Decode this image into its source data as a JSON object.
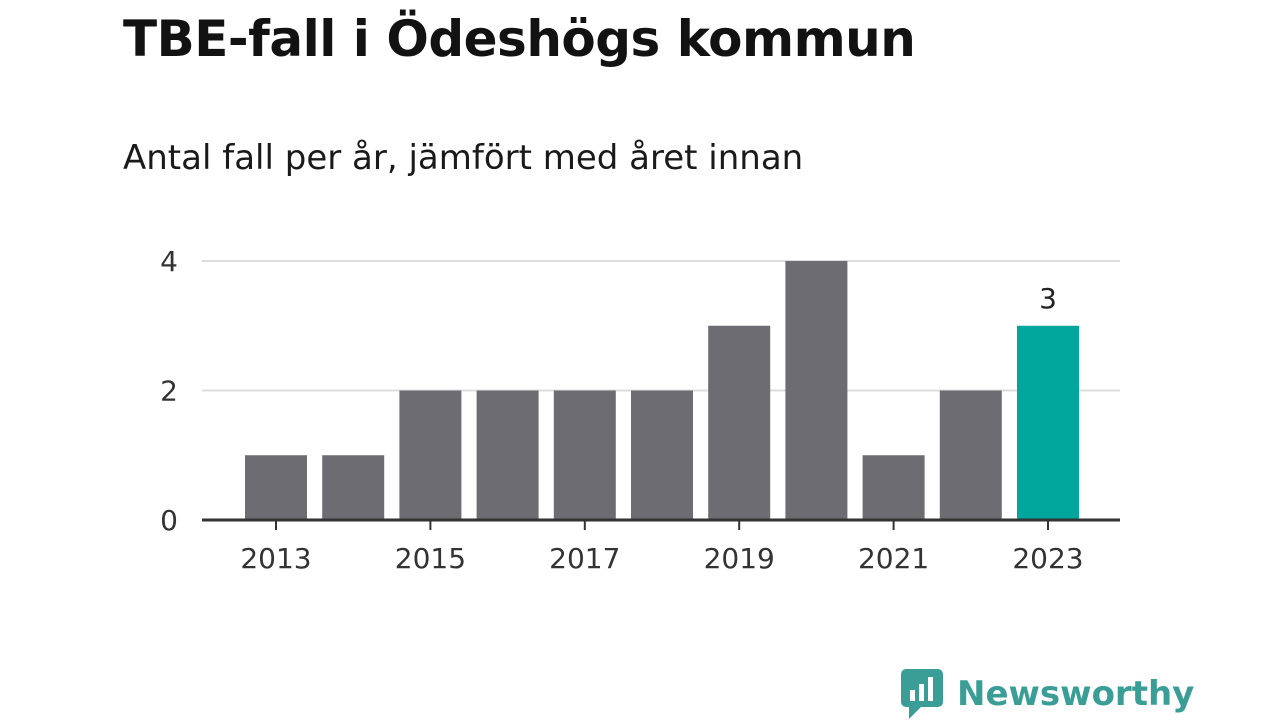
{
  "chart_data": {
    "type": "bar",
    "title": "TBE-fall i Ödeshögs kommun",
    "subtitle": "Antal fall per år, jämfört med året innan",
    "categories": [
      "2013",
      "2014",
      "2015",
      "2016",
      "2017",
      "2018",
      "2019",
      "2020",
      "2021",
      "2022",
      "2023"
    ],
    "values": [
      1,
      1,
      2,
      2,
      2,
      2,
      3,
      4,
      1,
      2,
      3
    ],
    "x_tick_labels": [
      "2013",
      "2015",
      "2017",
      "2019",
      "2021",
      "2023"
    ],
    "y_ticks": [
      0,
      2,
      4
    ],
    "ylim": [
      0,
      4
    ],
    "grid": true,
    "highlight_index": 10,
    "data_labels": [
      {
        "index": 10,
        "text": "3"
      }
    ],
    "colors": {
      "bar": "#6d6c72",
      "highlight": "#00a59b",
      "grid": "#dddddd",
      "axis": "#333333"
    }
  },
  "brand": {
    "name": "Newsworthy",
    "color": "#3a9e97"
  }
}
